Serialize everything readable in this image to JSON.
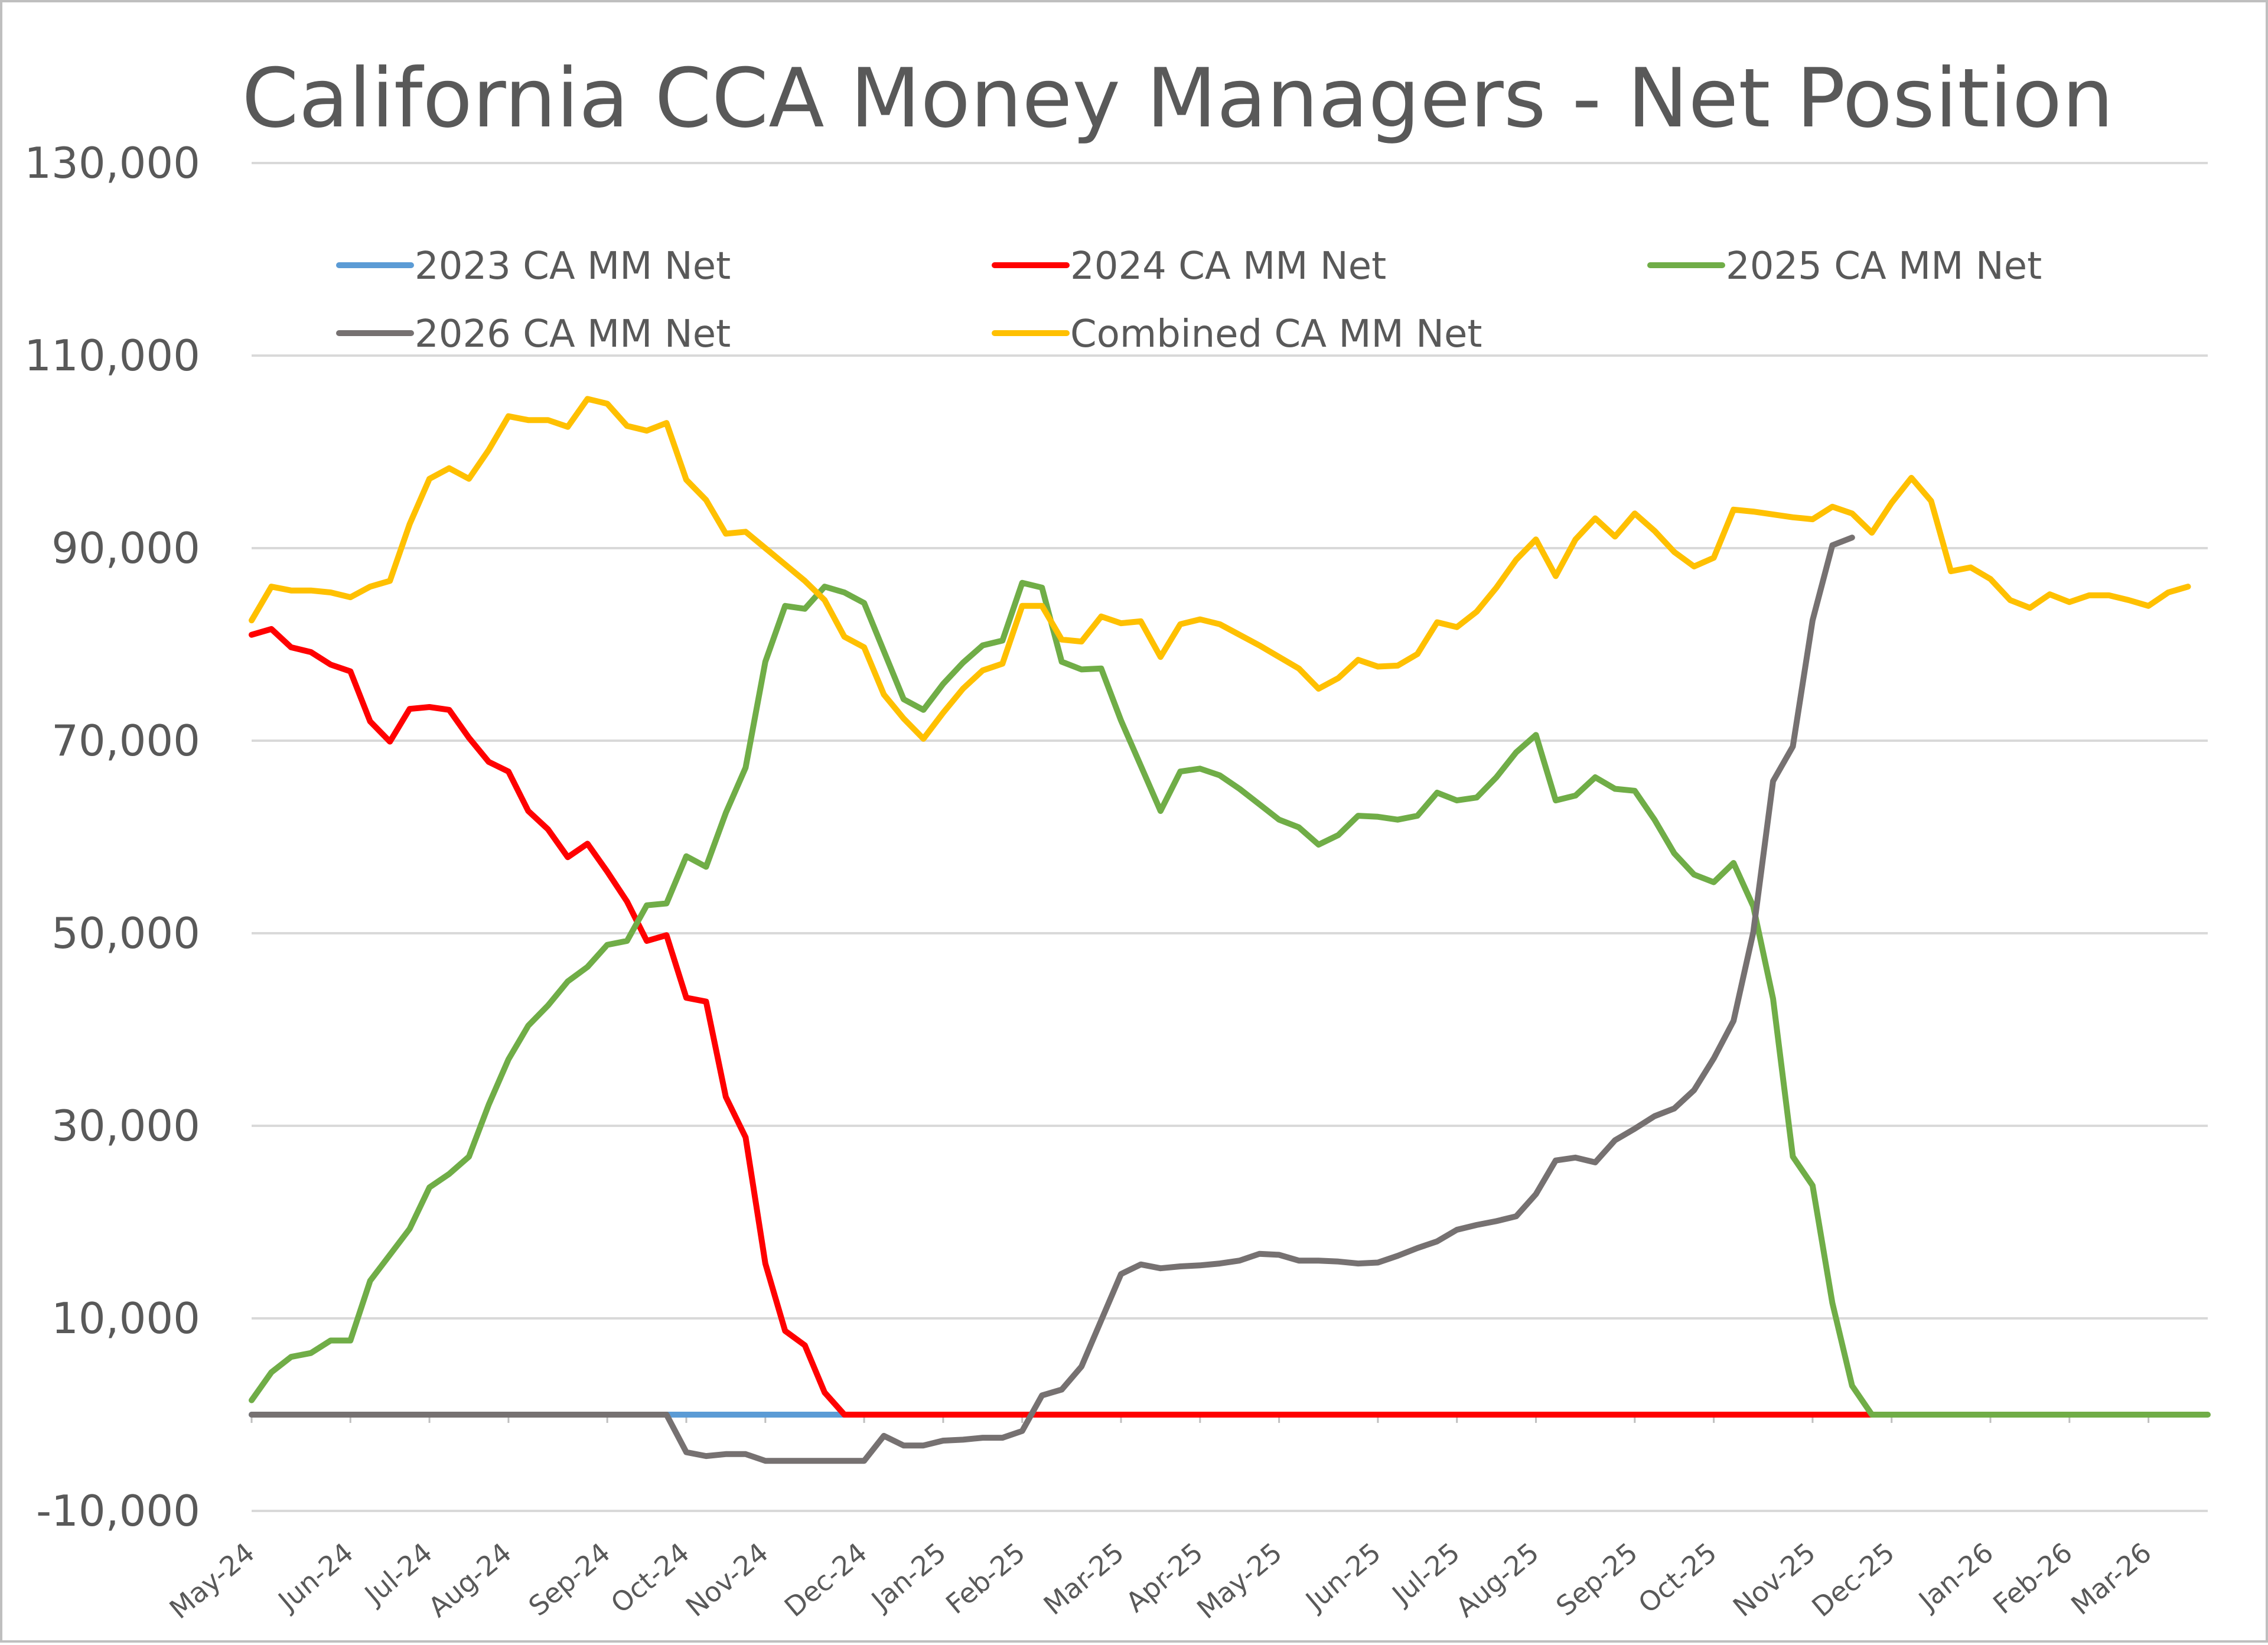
{
  "chart_data": {
    "type": "line",
    "title": "California CCA Money Managers - Net Position",
    "xlabel": "",
    "ylabel": "",
    "ylim": [
      -10000,
      130000
    ],
    "yticks": [
      130000,
      110000,
      90000,
      70000,
      50000,
      30000,
      10000,
      -10000
    ],
    "ytick_labels": [
      "130,000",
      "110,000",
      "90,000",
      "70,000",
      "50,000",
      "30,000",
      "10,000",
      "-10,000"
    ],
    "x_count": 100,
    "x_ticks": [
      {
        "label": "May-24",
        "index": 0
      },
      {
        "label": "Jun-24",
        "index": 5
      },
      {
        "label": "Jul-24",
        "index": 9
      },
      {
        "label": "Aug-24",
        "index": 13
      },
      {
        "label": "Sep-24",
        "index": 18
      },
      {
        "label": "Oct-24",
        "index": 22
      },
      {
        "label": "Nov-24",
        "index": 26
      },
      {
        "label": "Dec-24",
        "index": 31
      },
      {
        "label": "Jan-25",
        "index": 35
      },
      {
        "label": "Feb-25",
        "index": 39
      },
      {
        "label": "Mar-25",
        "index": 44
      },
      {
        "label": "Apr-25",
        "index": 48
      },
      {
        "label": "May-25",
        "index": 52
      },
      {
        "label": "Jun-25",
        "index": 57
      },
      {
        "label": "Jul-25",
        "index": 61
      },
      {
        "label": "Aug-25",
        "index": 65
      },
      {
        "label": "Sep-25",
        "index": 70
      },
      {
        "label": "Oct-25",
        "index": 74
      },
      {
        "label": "Nov-25",
        "index": 79
      },
      {
        "label": "Dec-25",
        "index": 83
      },
      {
        "label": "Jan-26",
        "index": 88
      },
      {
        "label": "Feb-26",
        "index": 92
      },
      {
        "label": "Mar-26",
        "index": 96
      }
    ],
    "legend_position": "top",
    "series": [
      {
        "name": "2023 CA MM Net",
        "color": "#5b9bd5",
        "start": 0,
        "values": [
          0,
          0,
          0,
          0,
          0,
          0,
          0,
          0,
          0,
          0,
          0,
          0,
          0,
          0,
          0,
          0,
          0,
          0,
          0,
          0,
          0,
          0,
          0,
          0,
          0,
          0,
          0,
          0,
          0,
          0,
          0,
          0
        ]
      },
      {
        "name": "2024 CA MM Net",
        "color": "#ff0000",
        "start": 0,
        "values": [
          81000,
          81600,
          79700,
          79200,
          77900,
          77200,
          72000,
          69900,
          73300,
          73500,
          73200,
          70300,
          67800,
          66800,
          62700,
          60800,
          57900,
          59300,
          56400,
          53300,
          49200,
          49800,
          43300,
          42900,
          33000,
          28800,
          15700,
          8700,
          7200,
          2300,
          0,
          0,
          0,
          0,
          0,
          0,
          0,
          0,
          0,
          0,
          0,
          0,
          0,
          0,
          0,
          0,
          0,
          0,
          0,
          0,
          0,
          0,
          0,
          0,
          0,
          0,
          0,
          0,
          0,
          0,
          0,
          0,
          0,
          0,
          0,
          0,
          0,
          0,
          0,
          0,
          0,
          0,
          0,
          0,
          0,
          0,
          0,
          0,
          0,
          0,
          0,
          0,
          0,
          0
        ]
      },
      {
        "name": "2025 CA MM Net",
        "color": "#70ad47",
        "start": 0,
        "values": [
          1500,
          4400,
          6000,
          6400,
          7700,
          7700,
          13900,
          16600,
          19300,
          23600,
          25000,
          26800,
          32200,
          36900,
          40400,
          42500,
          45000,
          46500,
          48800,
          49200,
          52900,
          53100,
          58000,
          56900,
          62500,
          67200,
          78200,
          84000,
          83700,
          86000,
          85400,
          84300,
          79300,
          74300,
          73200,
          75900,
          78100,
          79900,
          80400,
          86400,
          85900,
          78200,
          77400,
          77500,
          72100,
          67400,
          62700,
          66800,
          67100,
          66400,
          65000,
          63400,
          61800,
          61000,
          59200,
          60200,
          62200,
          62100,
          61800,
          62200,
          64600,
          63800,
          64100,
          66200,
          68800,
          70600,
          63800,
          64300,
          66200,
          65000,
          64800,
          61800,
          58300,
          56100,
          55300,
          57300,
          52800,
          43200,
          26800,
          23800,
          11600,
          3000,
          0,
          0,
          0,
          0,
          0,
          0,
          0,
          0,
          0,
          0,
          0,
          0,
          0,
          0,
          0,
          0,
          0,
          0
        ]
      },
      {
        "name": "2026 CA MM Net",
        "color": "#767171",
        "start": 0,
        "values": [
          0,
          0,
          0,
          0,
          0,
          0,
          0,
          0,
          0,
          0,
          0,
          0,
          0,
          0,
          0,
          0,
          0,
          0,
          0,
          0,
          0,
          0,
          -3900,
          -4300,
          -4100,
          -4100,
          -4800,
          -4800,
          -4800,
          -4800,
          -4800,
          -4800,
          -2200,
          -3200,
          -3200,
          -2700,
          -2600,
          -2400,
          -2400,
          -1700,
          2000,
          2600,
          5000,
          9800,
          14600,
          15600,
          15200,
          15400,
          15500,
          15700,
          16000,
          16700,
          16600,
          16000,
          16000,
          15900,
          15700,
          15800,
          16500,
          17300,
          18000,
          19200,
          19700,
          20100,
          20600,
          22900,
          26400,
          26700,
          26200,
          28500,
          29700,
          31000,
          31800,
          33700,
          37000,
          40900,
          50100,
          65800,
          69400,
          82500,
          90300,
          91100
        ]
      },
      {
        "name": "Combined CA MM Net",
        "color": "#ffc000",
        "start": 0,
        "values": [
          82500,
          86000,
          85600,
          85600,
          85400,
          84900,
          86000,
          86600,
          92500,
          97200,
          98300,
          97200,
          100200,
          103700,
          103300,
          103300,
          102600,
          105500,
          105000,
          102700,
          102200,
          103000,
          97100,
          95000,
          91500,
          91700,
          90000,
          88300,
          86600,
          84600,
          80800,
          79700,
          74800,
          72300,
          70200,
          72900,
          75400,
          77300,
          78000,
          84000,
          84000,
          80500,
          80300,
          82900,
          82200,
          82400,
          78700,
          82100,
          82600,
          82100,
          81000,
          79900,
          78700,
          77500,
          75400,
          76500,
          78400,
          77700,
          77800,
          79000,
          82300,
          81800,
          83400,
          85900,
          88800,
          90900,
          87100,
          90900,
          93100,
          91200,
          93600,
          91800,
          89600,
          88100,
          89000,
          94000,
          93800,
          93500,
          93200,
          93000,
          94300,
          93600,
          91600,
          94700,
          97300,
          94900,
          87600,
          88000,
          86800,
          84600,
          83800,
          85200,
          84400,
          85100,
          85100,
          84600,
          84000,
          85400,
          86000
        ]
      }
    ]
  }
}
